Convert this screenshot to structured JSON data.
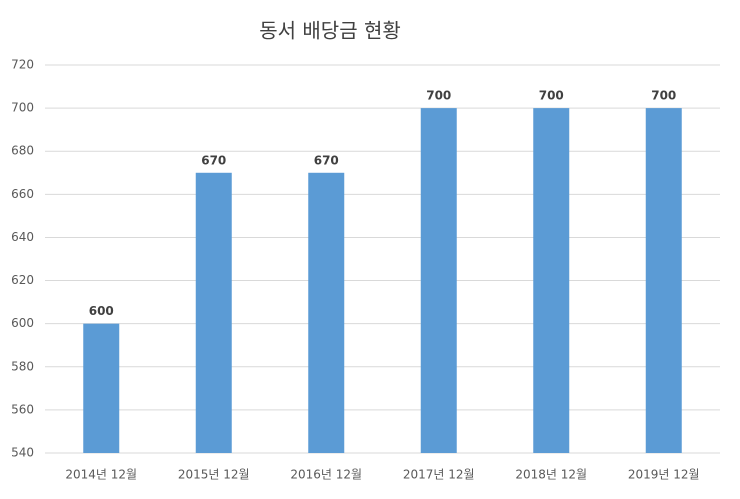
{
  "chart_data": {
    "type": "bar",
    "title": "동서 배당금 현황",
    "categories": [
      "2014년 12월",
      "2015년 12월",
      "2016년 12월",
      "2017년 12월",
      "2018년 12월",
      "2019년 12월"
    ],
    "values": [
      600,
      670,
      670,
      700,
      700,
      700
    ],
    "color": "#5b9bd5",
    "ylim": [
      540,
      720
    ],
    "yticks": [
      540,
      560,
      580,
      600,
      620,
      640,
      660,
      680,
      700,
      720
    ],
    "grid": true,
    "data_labels": true
  }
}
